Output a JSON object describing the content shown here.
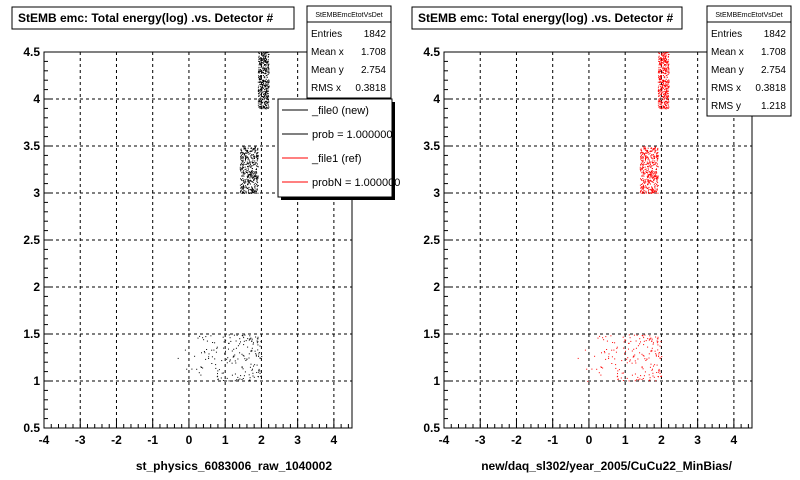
{
  "chart_data": [
    {
      "type": "scatter",
      "title": "StEMB emc: Total energy(log) .vs. Detector #",
      "xlabel": "st_physics_6083006_raw_1040002",
      "ylabel": "",
      "xlim": [
        -4,
        4.5
      ],
      "ylim": [
        0.5,
        4.5
      ],
      "x_ticks": [
        "-4",
        "-3",
        "-2",
        "-1",
        "0",
        "1",
        "2",
        "3",
        "4"
      ],
      "y_ticks": [
        "0.5",
        "1",
        "1.5",
        "2",
        "2.5",
        "3",
        "3.5",
        "4",
        "4.5"
      ],
      "grid": true,
      "marker_color": "#000000",
      "clusters": [
        {
          "x_range": [
            1.9,
            2.2
          ],
          "y_range": [
            3.9,
            4.5
          ],
          "density": "high"
        },
        {
          "x_range": [
            1.4,
            1.9
          ],
          "y_range": [
            3.0,
            3.5
          ],
          "density": "high"
        },
        {
          "x_range": [
            -0.5,
            2.0
          ],
          "y_range": [
            1.0,
            1.5
          ],
          "density": "high",
          "sparse_left_tail": true
        }
      ],
      "stats": {
        "name": "StEMBEmcEtotVsDet",
        "rows": [
          {
            "label": "Entries",
            "value": "1842"
          },
          {
            "label": "Mean x",
            "value": "1.708"
          },
          {
            "label": "Mean y",
            "value": "2.754"
          },
          {
            "label": "RMS x",
            "value": "0.3818"
          }
        ]
      },
      "legend": {
        "placement": "top-right",
        "entries": [
          {
            "label": "_file0 (new)",
            "color": "#000000"
          },
          {
            "label": "prob = 1.000000",
            "color": "#000000"
          },
          {
            "label": "_file1 (ref)",
            "color": "#ff0000"
          },
          {
            "label": "probN = 1.000000",
            "color": "#ff0000"
          }
        ]
      }
    },
    {
      "type": "scatter",
      "title": "StEMB emc: Total energy(log) .vs. Detector #",
      "xlabel": "new/daq_sl302/year_2005/CuCu22_MinBias/",
      "ylabel": "",
      "xlim": [
        -4,
        4.5
      ],
      "ylim": [
        0.5,
        4.5
      ],
      "x_ticks": [
        "-4",
        "-3",
        "-2",
        "-1",
        "0",
        "1",
        "2",
        "3",
        "4"
      ],
      "y_ticks": [
        "0.5",
        "1",
        "1.5",
        "2",
        "2.5",
        "3",
        "3.5",
        "4",
        "4.5"
      ],
      "grid": true,
      "marker_color": "#ff0000",
      "clusters": [
        {
          "x_range": [
            1.9,
            2.2
          ],
          "y_range": [
            3.9,
            4.5
          ],
          "density": "high"
        },
        {
          "x_range": [
            1.4,
            1.9
          ],
          "y_range": [
            3.0,
            3.5
          ],
          "density": "high"
        },
        {
          "x_range": [
            -0.5,
            2.0
          ],
          "y_range": [
            1.0,
            1.5
          ],
          "density": "high",
          "sparse_left_tail": true
        }
      ],
      "stats": {
        "name": "StEMBEmcEtotVsDet",
        "rows": [
          {
            "label": "Entries",
            "value": "1842"
          },
          {
            "label": "Mean x",
            "value": "1.708"
          },
          {
            "label": "Mean y",
            "value": "2.754"
          },
          {
            "label": "RMS x",
            "value": "0.3818"
          },
          {
            "label": "RMS y",
            "value": "1.218"
          }
        ]
      }
    }
  ]
}
